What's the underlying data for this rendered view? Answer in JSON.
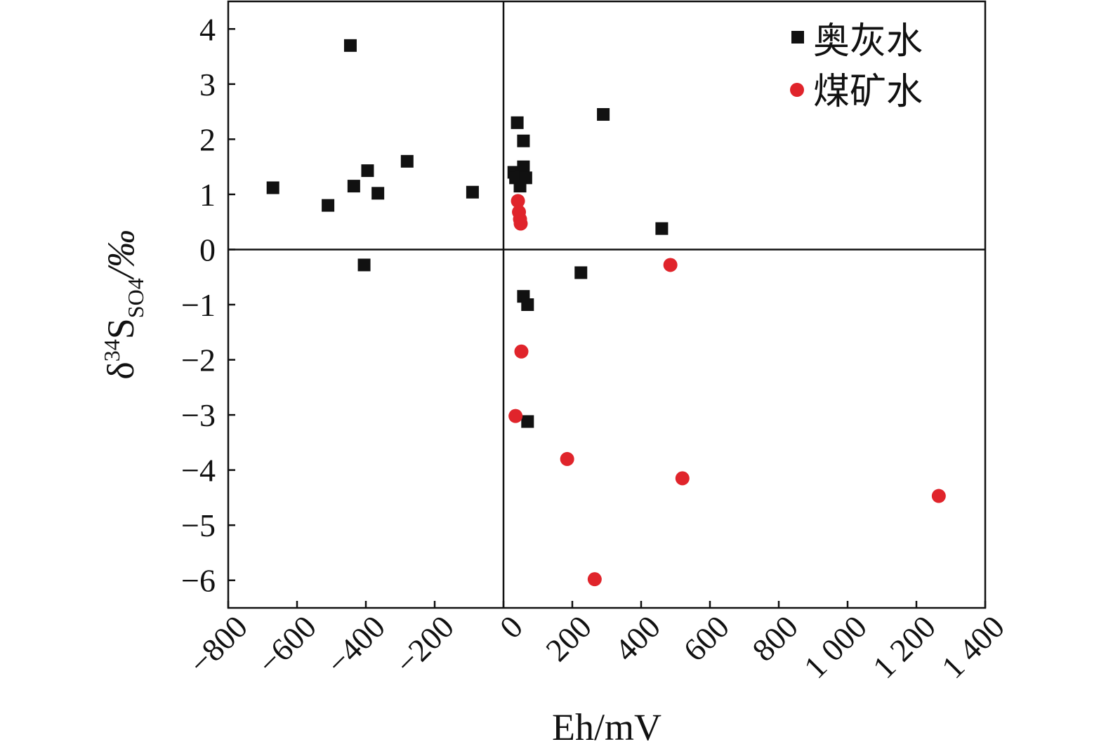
{
  "chart_data": {
    "type": "scatter",
    "xlabel": "Eh/mV",
    "ylabel": {
      "main": "δ",
      "sup": "34",
      "base": "S",
      "sub": "SO4",
      "unit": "/‰"
    },
    "xlim": [
      -800,
      1400
    ],
    "ylim": [
      -6.5,
      4.5
    ],
    "x_ticks": [
      -800,
      -600,
      -400,
      -200,
      0,
      200,
      400,
      600,
      800,
      1000,
      1200,
      1400
    ],
    "x_tick_labels": [
      "−800",
      "−600",
      "−400",
      "−200",
      "0",
      "200",
      "400",
      "600",
      "800",
      "1 000",
      "1 200",
      "1 400"
    ],
    "y_ticks": [
      4,
      3,
      2,
      1,
      0,
      -1,
      -2,
      -3,
      -4,
      -5,
      -6
    ],
    "y_tick_labels": [
      "4",
      "3",
      "2",
      "1",
      "0",
      "−1",
      "−2",
      "−3",
      "−4",
      "−5",
      "−6"
    ],
    "reference_lines": {
      "x": 0,
      "y": 0
    },
    "grid": false,
    "legend_position": "top-right",
    "series": [
      {
        "name": "奥灰水",
        "marker": "square",
        "color": "#111111",
        "points": [
          [
            -445,
            3.7
          ],
          [
            -670,
            1.12
          ],
          [
            -510,
            0.8
          ],
          [
            -435,
            1.15
          ],
          [
            -395,
            1.43
          ],
          [
            -365,
            1.02
          ],
          [
            -280,
            1.6
          ],
          [
            -405,
            -0.28
          ],
          [
            -90,
            1.04
          ],
          [
            40,
            2.3
          ],
          [
            58,
            1.97
          ],
          [
            58,
            1.5
          ],
          [
            30,
            1.4
          ],
          [
            35,
            1.3
          ],
          [
            52,
            1.32
          ],
          [
            65,
            1.3
          ],
          [
            48,
            1.15
          ],
          [
            290,
            2.45
          ],
          [
            460,
            0.38
          ],
          [
            225,
            -0.42
          ],
          [
            58,
            -0.85
          ],
          [
            70,
            -1.0
          ],
          [
            70,
            -3.12
          ]
        ]
      },
      {
        "name": "煤矿水",
        "marker": "circle",
        "color": "#e0242b",
        "points": [
          [
            42,
            0.88
          ],
          [
            45,
            0.68
          ],
          [
            48,
            0.55
          ],
          [
            50,
            0.47
          ],
          [
            485,
            -0.28
          ],
          [
            52,
            -1.85
          ],
          [
            35,
            -3.02
          ],
          [
            185,
            -3.8
          ],
          [
            520,
            -4.15
          ],
          [
            265,
            -5.98
          ],
          [
            1265,
            -4.47
          ]
        ]
      }
    ]
  }
}
